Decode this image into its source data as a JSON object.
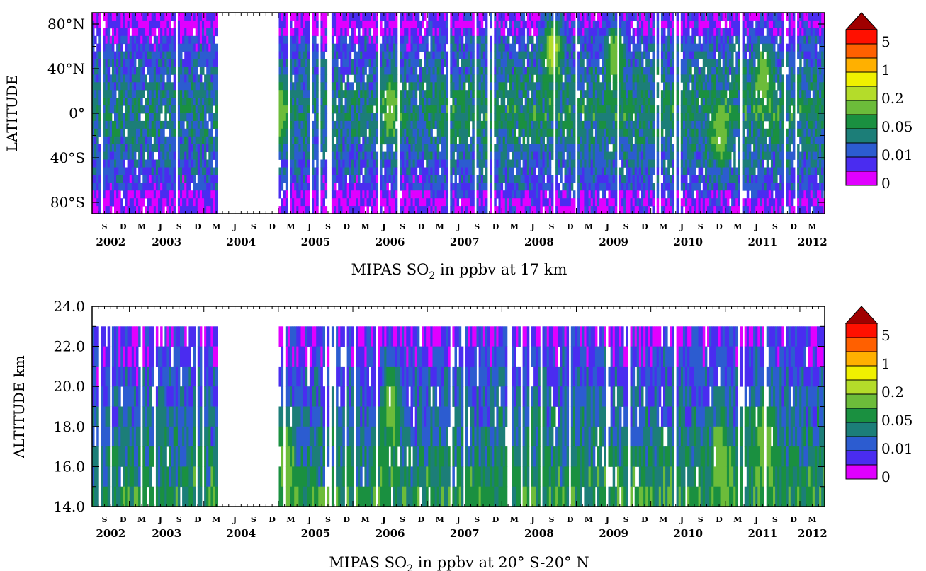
{
  "chart_data": [
    {
      "type": "heatmap",
      "title": "MIPAS SO2 in ppbv at 17 km",
      "ylabel": "LATITUDE",
      "y_tick_labels": [
        "80°N",
        "40°N",
        "0°",
        "40°S",
        "80°S"
      ],
      "ylim": [
        -90,
        90
      ],
      "x_year_labels": [
        "2002",
        "2003",
        "2004",
        "2005",
        "2006",
        "2007",
        "2008",
        "2009",
        "2010",
        "2011",
        "2012"
      ],
      "xlim": [
        "2002-07",
        "2012-04"
      ],
      "data_gap": [
        "2004-03",
        "2005-01"
      ],
      "colorbar": {
        "labels": [
          "0",
          "0.01",
          "0.05",
          "0.2",
          "1",
          "5"
        ],
        "colors": [
          "#e000ff",
          "#4a2cf0",
          "#2c5cd0",
          "#1c7e78",
          "#1a9040",
          "#6cbc3a",
          "#b4dc2a",
          "#f0f000",
          "#ffb000",
          "#ff6000",
          "#ff1000",
          "#a00000"
        ]
      },
      "features": [
        {
          "date": "2005-01",
          "lat_center": 0,
          "level": "0.2"
        },
        {
          "date": "2008-09",
          "lat_center": 60,
          "level": "1"
        },
        {
          "date": "2009-07",
          "lat_center": 55,
          "level": "0.2"
        },
        {
          "date": "2011-07",
          "lat_center": 35,
          "level": "0.2"
        },
        {
          "date": "2010-12",
          "lat_center": -20,
          "level": "0.2"
        },
        {
          "date": "2006-07",
          "lat_center": 5,
          "level": "0.2"
        }
      ]
    },
    {
      "type": "heatmap",
      "title": "MIPAS SO2 in ppbv at 20° S-20° N",
      "ylabel": "ALTITUDE  km",
      "y_tick_labels": [
        "14.0",
        "16.0",
        "18.0",
        "20.0",
        "22.0",
        "24.0"
      ],
      "ylim": [
        14,
        24
      ],
      "x_year_labels": [
        "2002",
        "2003",
        "2004",
        "2005",
        "2006",
        "2007",
        "2008",
        "2009",
        "2010",
        "2011",
        "2012"
      ],
      "xlim": [
        "2002-07",
        "2012-04"
      ],
      "data_gap": [
        "2004-03",
        "2005-01"
      ],
      "colorbar": {
        "labels": [
          "0",
          "0.01",
          "0.05",
          "0.2",
          "1",
          "5"
        ],
        "colors": [
          "#e000ff",
          "#4a2cf0",
          "#2c5cd0",
          "#1c7e78",
          "#1a9040",
          "#6cbc3a",
          "#b4dc2a",
          "#f0f000",
          "#ffb000",
          "#ff6000",
          "#ff1000",
          "#a00000"
        ]
      },
      "features": [
        {
          "date": "2006-07",
          "alt_center": 19,
          "level": "0.2"
        },
        {
          "date": "2005-02",
          "alt_center": 16,
          "level": "0.2"
        },
        {
          "date": "2010-12",
          "alt_center": 16,
          "level": "0.2"
        },
        {
          "date": "2011-07",
          "alt_center": 17,
          "level": "0.2"
        }
      ]
    }
  ],
  "month_tick_labels": [
    "M",
    "J",
    "S",
    "D"
  ],
  "panels": [
    {
      "title_main": "MIPAS SO",
      "title_sub": "2",
      "title_rest": " in ppbv at 17 km"
    },
    {
      "title_main": "MIPAS SO",
      "title_sub": "2",
      "title_rest": " in ppbv at 20° S-20° N"
    }
  ]
}
